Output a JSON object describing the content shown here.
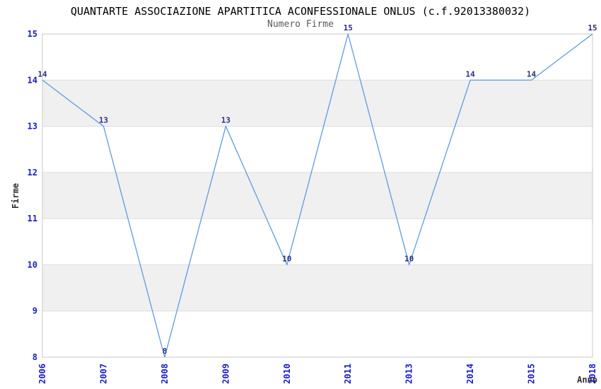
{
  "chart_data": {
    "type": "line",
    "title": "QUANTARTE ASSOCIAZIONE APARTITICA ACONFESSIONALE ONLUS (c.f.92013380032)",
    "subtitle": "Numero Firme",
    "xlabel": "Anno",
    "ylabel": "Firme",
    "categories": [
      "2006",
      "2007",
      "2008",
      "2009",
      "2010",
      "2011",
      "2013",
      "2014",
      "2015",
      "2018"
    ],
    "values": [
      14,
      13,
      8,
      13,
      10,
      15,
      10,
      14,
      14,
      15
    ],
    "ylim": [
      8,
      15
    ],
    "yticks": [
      8,
      9,
      10,
      11,
      12,
      13,
      14,
      15
    ],
    "show_point_labels": true,
    "legend": "none",
    "grid": "horizontal-bands",
    "colors": {
      "line": "#5d9cdf",
      "point_label": "#2e2e85",
      "tick_label": "#1a1acd",
      "band": "#f0f0f0",
      "gridline": "#dcdcdc",
      "plot_border": "#c9c9c9",
      "title": "#000000",
      "subtitle": "#5a5a5a",
      "axis_title": "#303030",
      "background": "#ffffff"
    }
  }
}
